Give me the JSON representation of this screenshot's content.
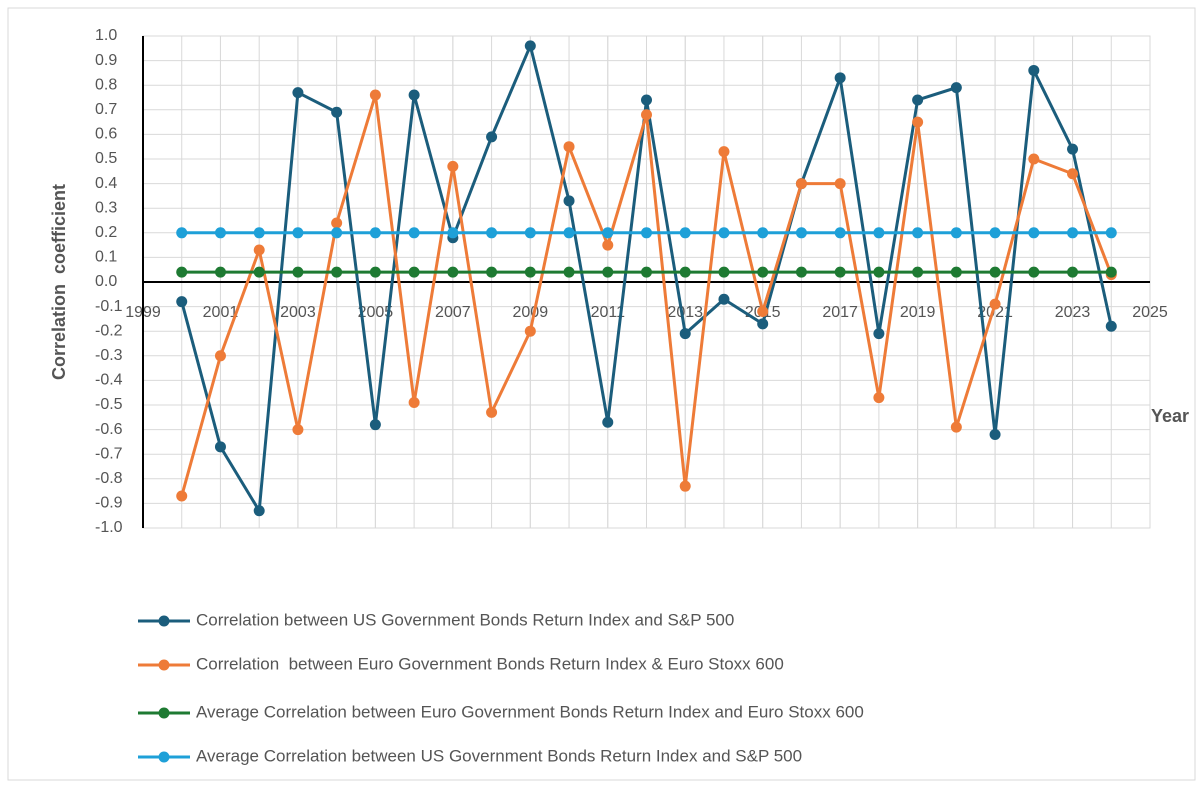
{
  "chart_data": {
    "type": "line",
    "x_label": "Year",
    "y_label": "Correlation  coefficient",
    "x": [
      2000,
      2001,
      2002,
      2003,
      2004,
      2005,
      2006,
      2007,
      2008,
      2009,
      2010,
      2011,
      2012,
      2013,
      2014,
      2015,
      2016,
      2017,
      2018,
      2019,
      2020,
      2021,
      2022,
      2023,
      2024
    ],
    "series": [
      {
        "name": "Correlation between US Government Bonds Return Index and S&P 500",
        "color": "#1b5d7c",
        "values": [
          -0.08,
          -0.67,
          -0.93,
          0.77,
          0.69,
          -0.58,
          0.76,
          0.18,
          0.59,
          0.96,
          0.33,
          -0.57,
          0.74,
          -0.21,
          -0.07,
          -0.17,
          0.4,
          0.83,
          -0.21,
          0.74,
          0.79,
          -0.62,
          0.86,
          0.54,
          -0.18
        ]
      },
      {
        "name": "Correlation  between Euro Government Bonds Return Index & Euro Stoxx 600",
        "color": "#ee7b38",
        "values": [
          -0.87,
          -0.3,
          0.13,
          -0.6,
          0.24,
          0.76,
          -0.49,
          0.47,
          -0.53,
          -0.2,
          0.55,
          0.15,
          0.68,
          -0.83,
          0.53,
          -0.12,
          0.4,
          0.4,
          -0.47,
          0.65,
          -0.59,
          -0.09,
          0.5,
          0.44,
          0.03
        ]
      },
      {
        "name": "Average Correlation between Euro Government Bonds Return Index and Euro Stoxx 600",
        "color": "#1e7a32",
        "values": [
          0.04,
          0.04,
          0.04,
          0.04,
          0.04,
          0.04,
          0.04,
          0.04,
          0.04,
          0.04,
          0.04,
          0.04,
          0.04,
          0.04,
          0.04,
          0.04,
          0.04,
          0.04,
          0.04,
          0.04,
          0.04,
          0.04,
          0.04,
          0.04,
          0.04
        ]
      },
      {
        "name": "Average Correlation between US Government Bonds Return Index and S&P 500",
        "color": "#1ea0d8",
        "values": [
          0.2,
          0.2,
          0.2,
          0.2,
          0.2,
          0.2,
          0.2,
          0.2,
          0.2,
          0.2,
          0.2,
          0.2,
          0.2,
          0.2,
          0.2,
          0.2,
          0.2,
          0.2,
          0.2,
          0.2,
          0.2,
          0.2,
          0.2,
          0.2,
          0.2
        ]
      }
    ],
    "xlim": [
      1999,
      2025
    ],
    "xticks": [
      1999,
      2001,
      2003,
      2005,
      2007,
      2009,
      2011,
      2013,
      2015,
      2017,
      2019,
      2021,
      2023,
      2025
    ],
    "ylim": [
      -1,
      1
    ],
    "yticks": [
      {
        "value": -1,
        "label": "-1.0"
      },
      -0.9,
      -0.8,
      -0.7,
      -0.6,
      -0.5,
      -0.4,
      -0.3,
      -0.2,
      -0.1,
      {
        "value": 0,
        "label": "0.0"
      },
      0.1,
      0.2,
      0.3,
      0.4,
      0.5,
      0.6,
      0.7,
      0.8,
      0.9,
      {
        "value": 1,
        "label": "1.0"
      }
    ],
    "grid": true,
    "legend": "bottom"
  }
}
